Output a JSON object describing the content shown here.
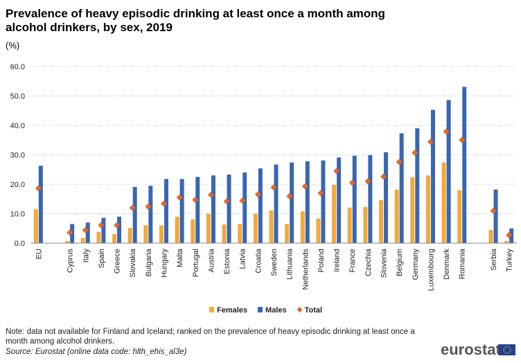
{
  "chart_data": {
    "type": "bar",
    "title": "Prevalence of heavy episodic drinking at least once a month among alcohol drinkers, by sex, 2019",
    "subtitle": "(%)",
    "categories": [
      "EU",
      null,
      "Cyprus",
      "Italy",
      "Spain",
      "Greece",
      "Slovakia",
      "Bulgaria",
      "Hungary",
      "Malta",
      "Portugal",
      "Austria",
      "Estonia",
      "Latvia",
      "Croatia",
      "Sweden",
      "Lithuania",
      "Netherlands",
      "Poland",
      "Ireland",
      "France",
      "Czechia",
      "Slovenia",
      "Belgium",
      "Germany",
      "Luxembourg",
      "Denmark",
      "Romania",
      null,
      "Serbia",
      "Turkey"
    ],
    "series": [
      {
        "name": "Females",
        "color": "#f2a93b",
        "values": [
          11.5,
          null,
          0.7,
          1.8,
          3.8,
          3.1,
          5.2,
          6.1,
          6.0,
          9.0,
          8.1,
          10.0,
          6.3,
          6.5,
          10.0,
          11.1,
          6.5,
          10.8,
          8.4,
          19.8,
          12.1,
          12.3,
          14.6,
          18.2,
          22.4,
          23.0,
          27.4,
          18.0,
          null,
          4.5,
          0.7
        ]
      },
      {
        "name": "Males",
        "color": "#3a66b0",
        "values": [
          26.3,
          null,
          6.5,
          7.0,
          8.6,
          9.0,
          19.1,
          19.5,
          21.8,
          21.8,
          22.5,
          23.0,
          23.3,
          24.0,
          25.4,
          26.7,
          27.4,
          27.8,
          28.1,
          29.1,
          29.7,
          29.9,
          30.9,
          37.3,
          39.0,
          45.3,
          48.6,
          53.1,
          null,
          18.2,
          5.0
        ]
      },
      {
        "name": "Total",
        "color": "#e06a2a",
        "marker": "diamond",
        "values": [
          18.6,
          null,
          3.6,
          4.4,
          6.1,
          6.1,
          12.0,
          12.4,
          13.4,
          15.5,
          14.7,
          16.4,
          14.2,
          14.4,
          16.6,
          18.9,
          15.9,
          19.3,
          17.0,
          24.5,
          20.5,
          21.0,
          22.6,
          27.6,
          30.7,
          34.4,
          37.9,
          35.1,
          null,
          11.0,
          2.7
        ]
      }
    ],
    "ylim": [
      0,
      60
    ],
    "yticks": [
      {
        "value": 0,
        "label": "0.0"
      },
      {
        "value": 10,
        "label": "10.0"
      },
      {
        "value": 20,
        "label": "20.0"
      },
      {
        "value": 30,
        "label": "30.0"
      },
      {
        "value": 40,
        "label": "40.0"
      },
      {
        "value": 50,
        "label": "50.0"
      },
      {
        "value": 60,
        "label": "60.0"
      }
    ],
    "grid": true,
    "legend": "bottom",
    "note": "Note: data not available for Finland  and Iceland;  ranked on the prevalence of heavy episodic drinking at least once a month among alcohol drinkers.",
    "source": "Source: Eurostat (online data code: hlth_ehis_al3e)",
    "logo": "eurostat"
  }
}
